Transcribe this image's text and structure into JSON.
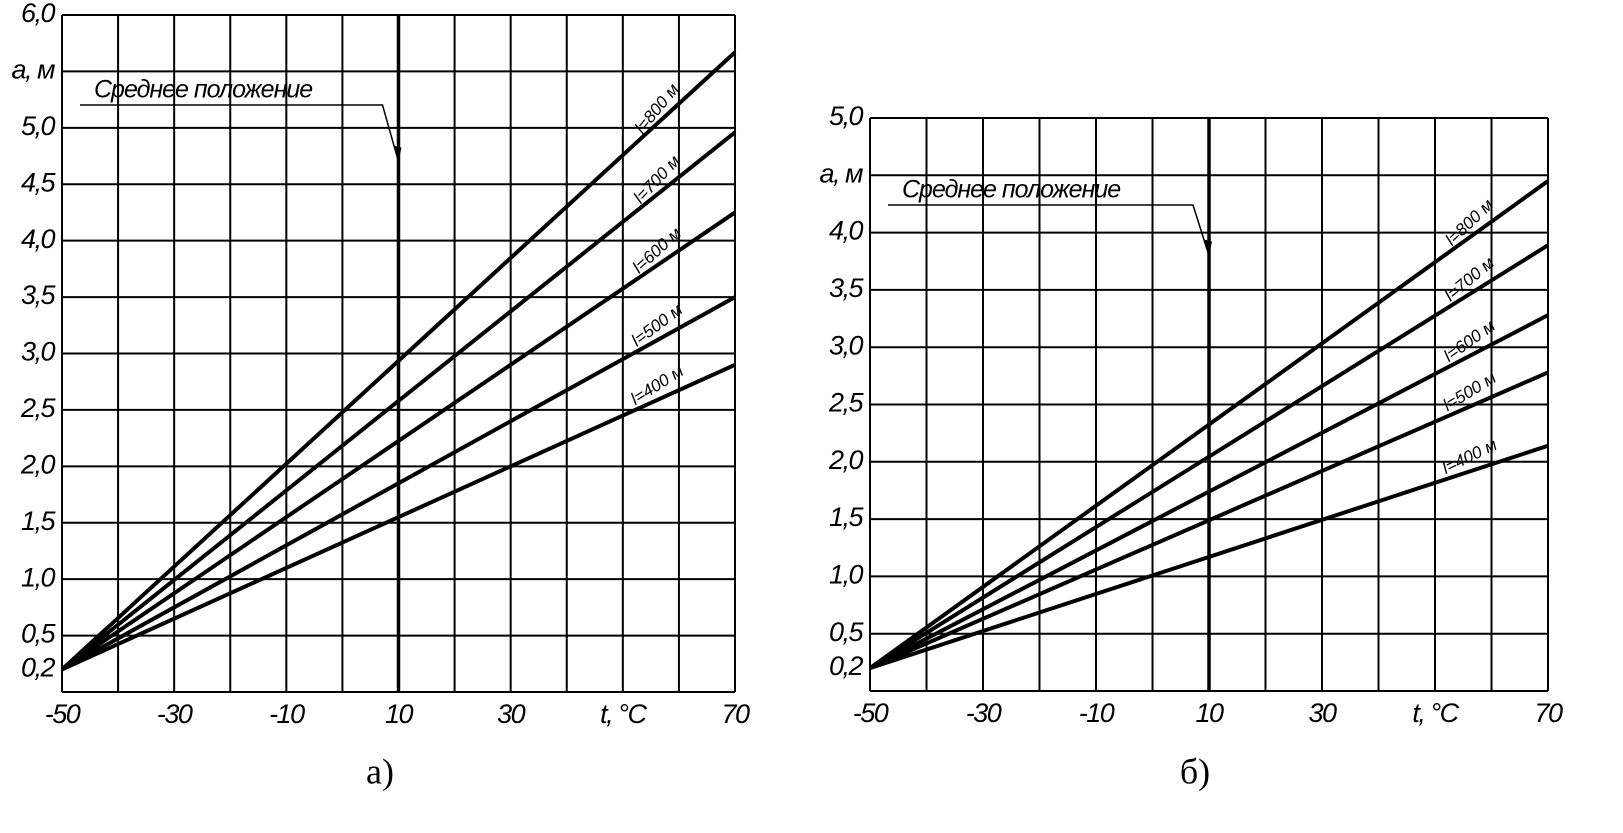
{
  "chart_data": [
    {
      "type": "line",
      "caption": "а)",
      "xlabel": "t, °C",
      "ylabel": "a, м",
      "annotation": {
        "text": "Среднее положение",
        "x": 10,
        "y": 4.7
      },
      "xlim": [
        -50,
        70
      ],
      "ylim": [
        0,
        6.0
      ],
      "xticks": [
        -50,
        -30,
        -10,
        10,
        30,
        70
      ],
      "xgrid": [
        -50,
        -40,
        -30,
        -20,
        -10,
        0,
        10,
        20,
        30,
        40,
        50,
        60,
        70
      ],
      "yticks": [
        {
          "value": 0.2,
          "label": "0,2"
        },
        {
          "value": 0.5,
          "label": "0,5"
        },
        {
          "value": 1.0,
          "label": "1,0"
        },
        {
          "value": 1.5,
          "label": "1,5"
        },
        {
          "value": 2.0,
          "label": "2,0"
        },
        {
          "value": 2.5,
          "label": "2,5"
        },
        {
          "value": 3.0,
          "label": "3,0"
        },
        {
          "value": 3.5,
          "label": "3,5"
        },
        {
          "value": 4.0,
          "label": "4,0"
        },
        {
          "value": 4.5,
          "label": "4,5"
        },
        {
          "value": 5.0,
          "label": "5,0"
        },
        {
          "value": 6.0,
          "label": "6,0"
        }
      ],
      "ygrid": [
        0,
        0.5,
        1.0,
        1.5,
        2.0,
        2.5,
        3.0,
        3.5,
        4.0,
        4.5,
        5.0,
        5.5,
        6.0
      ],
      "x": [
        -50,
        70
      ],
      "series": [
        {
          "name": "l=800 м",
          "color": "#000000",
          "values": [
            0.2,
            5.67
          ]
        },
        {
          "name": "l=700 м",
          "color": "#000000",
          "values": [
            0.2,
            4.96
          ]
        },
        {
          "name": "l=600 м",
          "color": "#000000",
          "values": [
            0.2,
            4.25
          ]
        },
        {
          "name": "l=500 м",
          "color": "#000000",
          "values": [
            0.2,
            3.5
          ]
        },
        {
          "name": "l=400 м",
          "color": "#000000",
          "values": [
            0.2,
            2.9
          ]
        }
      ]
    },
    {
      "type": "line",
      "caption": "б)",
      "xlabel": "t, °C",
      "ylabel": "a, м",
      "annotation": {
        "text": "Среднее положение",
        "x": 10,
        "y": 3.8
      },
      "xlim": [
        -50,
        70
      ],
      "ylim": [
        0,
        5.0
      ],
      "xticks": [
        -50,
        -30,
        -10,
        10,
        30,
        70
      ],
      "xgrid": [
        -50,
        -40,
        -30,
        -20,
        -10,
        0,
        10,
        20,
        30,
        40,
        50,
        60,
        70
      ],
      "yticks": [
        {
          "value": 0.2,
          "label": "0,2"
        },
        {
          "value": 0.5,
          "label": "0,5"
        },
        {
          "value": 1.0,
          "label": "1,0"
        },
        {
          "value": 1.5,
          "label": "1,5"
        },
        {
          "value": 2.0,
          "label": "2,0"
        },
        {
          "value": 2.5,
          "label": "2,5"
        },
        {
          "value": 3.0,
          "label": "3,0"
        },
        {
          "value": 3.5,
          "label": "3,5"
        },
        {
          "value": 4.0,
          "label": "4,0"
        },
        {
          "value": 5.0,
          "label": "5,0"
        }
      ],
      "ygrid": [
        0,
        0.5,
        1.0,
        1.5,
        2.0,
        2.5,
        3.0,
        3.5,
        4.0,
        4.5,
        5.0
      ],
      "x": [
        -50,
        70
      ],
      "series": [
        {
          "name": "l=800 м",
          "color": "#000000",
          "values": [
            0.2,
            4.45
          ]
        },
        {
          "name": "l=700 м",
          "color": "#000000",
          "values": [
            0.2,
            3.89
          ]
        },
        {
          "name": "l=600 м",
          "color": "#000000",
          "values": [
            0.2,
            3.28
          ]
        },
        {
          "name": "l=500 м",
          "color": "#000000",
          "values": [
            0.2,
            2.78
          ]
        },
        {
          "name": "l=400 м",
          "color": "#000000",
          "values": [
            0.2,
            2.14
          ]
        }
      ]
    }
  ]
}
